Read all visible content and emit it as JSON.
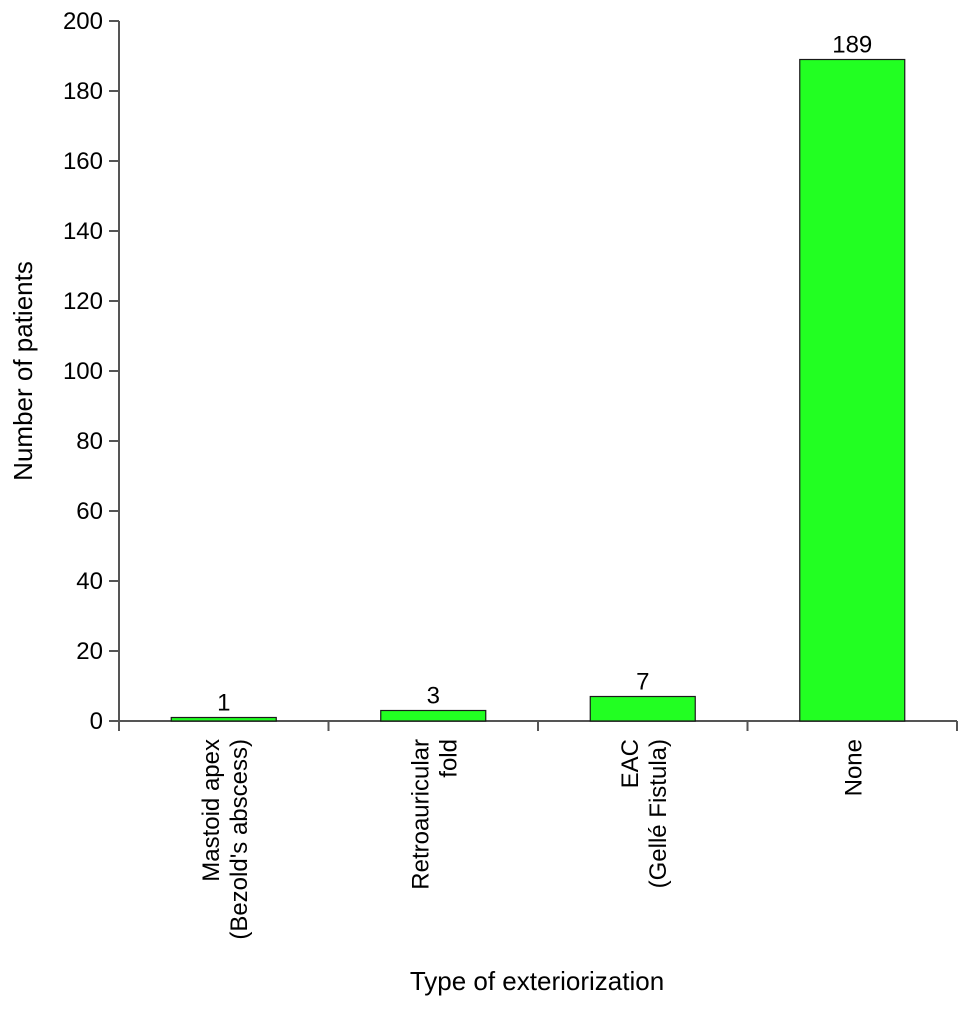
{
  "chart_data": {
    "type": "bar",
    "categories": [
      [
        "Mastoid apex",
        "(Bezold's abscess)"
      ],
      [
        "Retroauricular",
        "fold"
      ],
      [
        "EAC",
        "(Gellé Fistula)"
      ],
      [
        "None"
      ]
    ],
    "values": [
      1,
      3,
      7,
      189
    ],
    "data_labels": [
      "1",
      "3",
      "7",
      "189"
    ],
    "xlabel": "Type of exteriorization",
    "ylabel": "Number of patients",
    "ylim": [
      0,
      200
    ],
    "yticks": [
      0,
      20,
      40,
      60,
      80,
      100,
      120,
      140,
      160,
      180,
      200
    ],
    "grid": false,
    "colors": {
      "bar_fill": "#22ff22",
      "bar_stroke": "#1a1a1a",
      "axis": "#555555"
    }
  }
}
